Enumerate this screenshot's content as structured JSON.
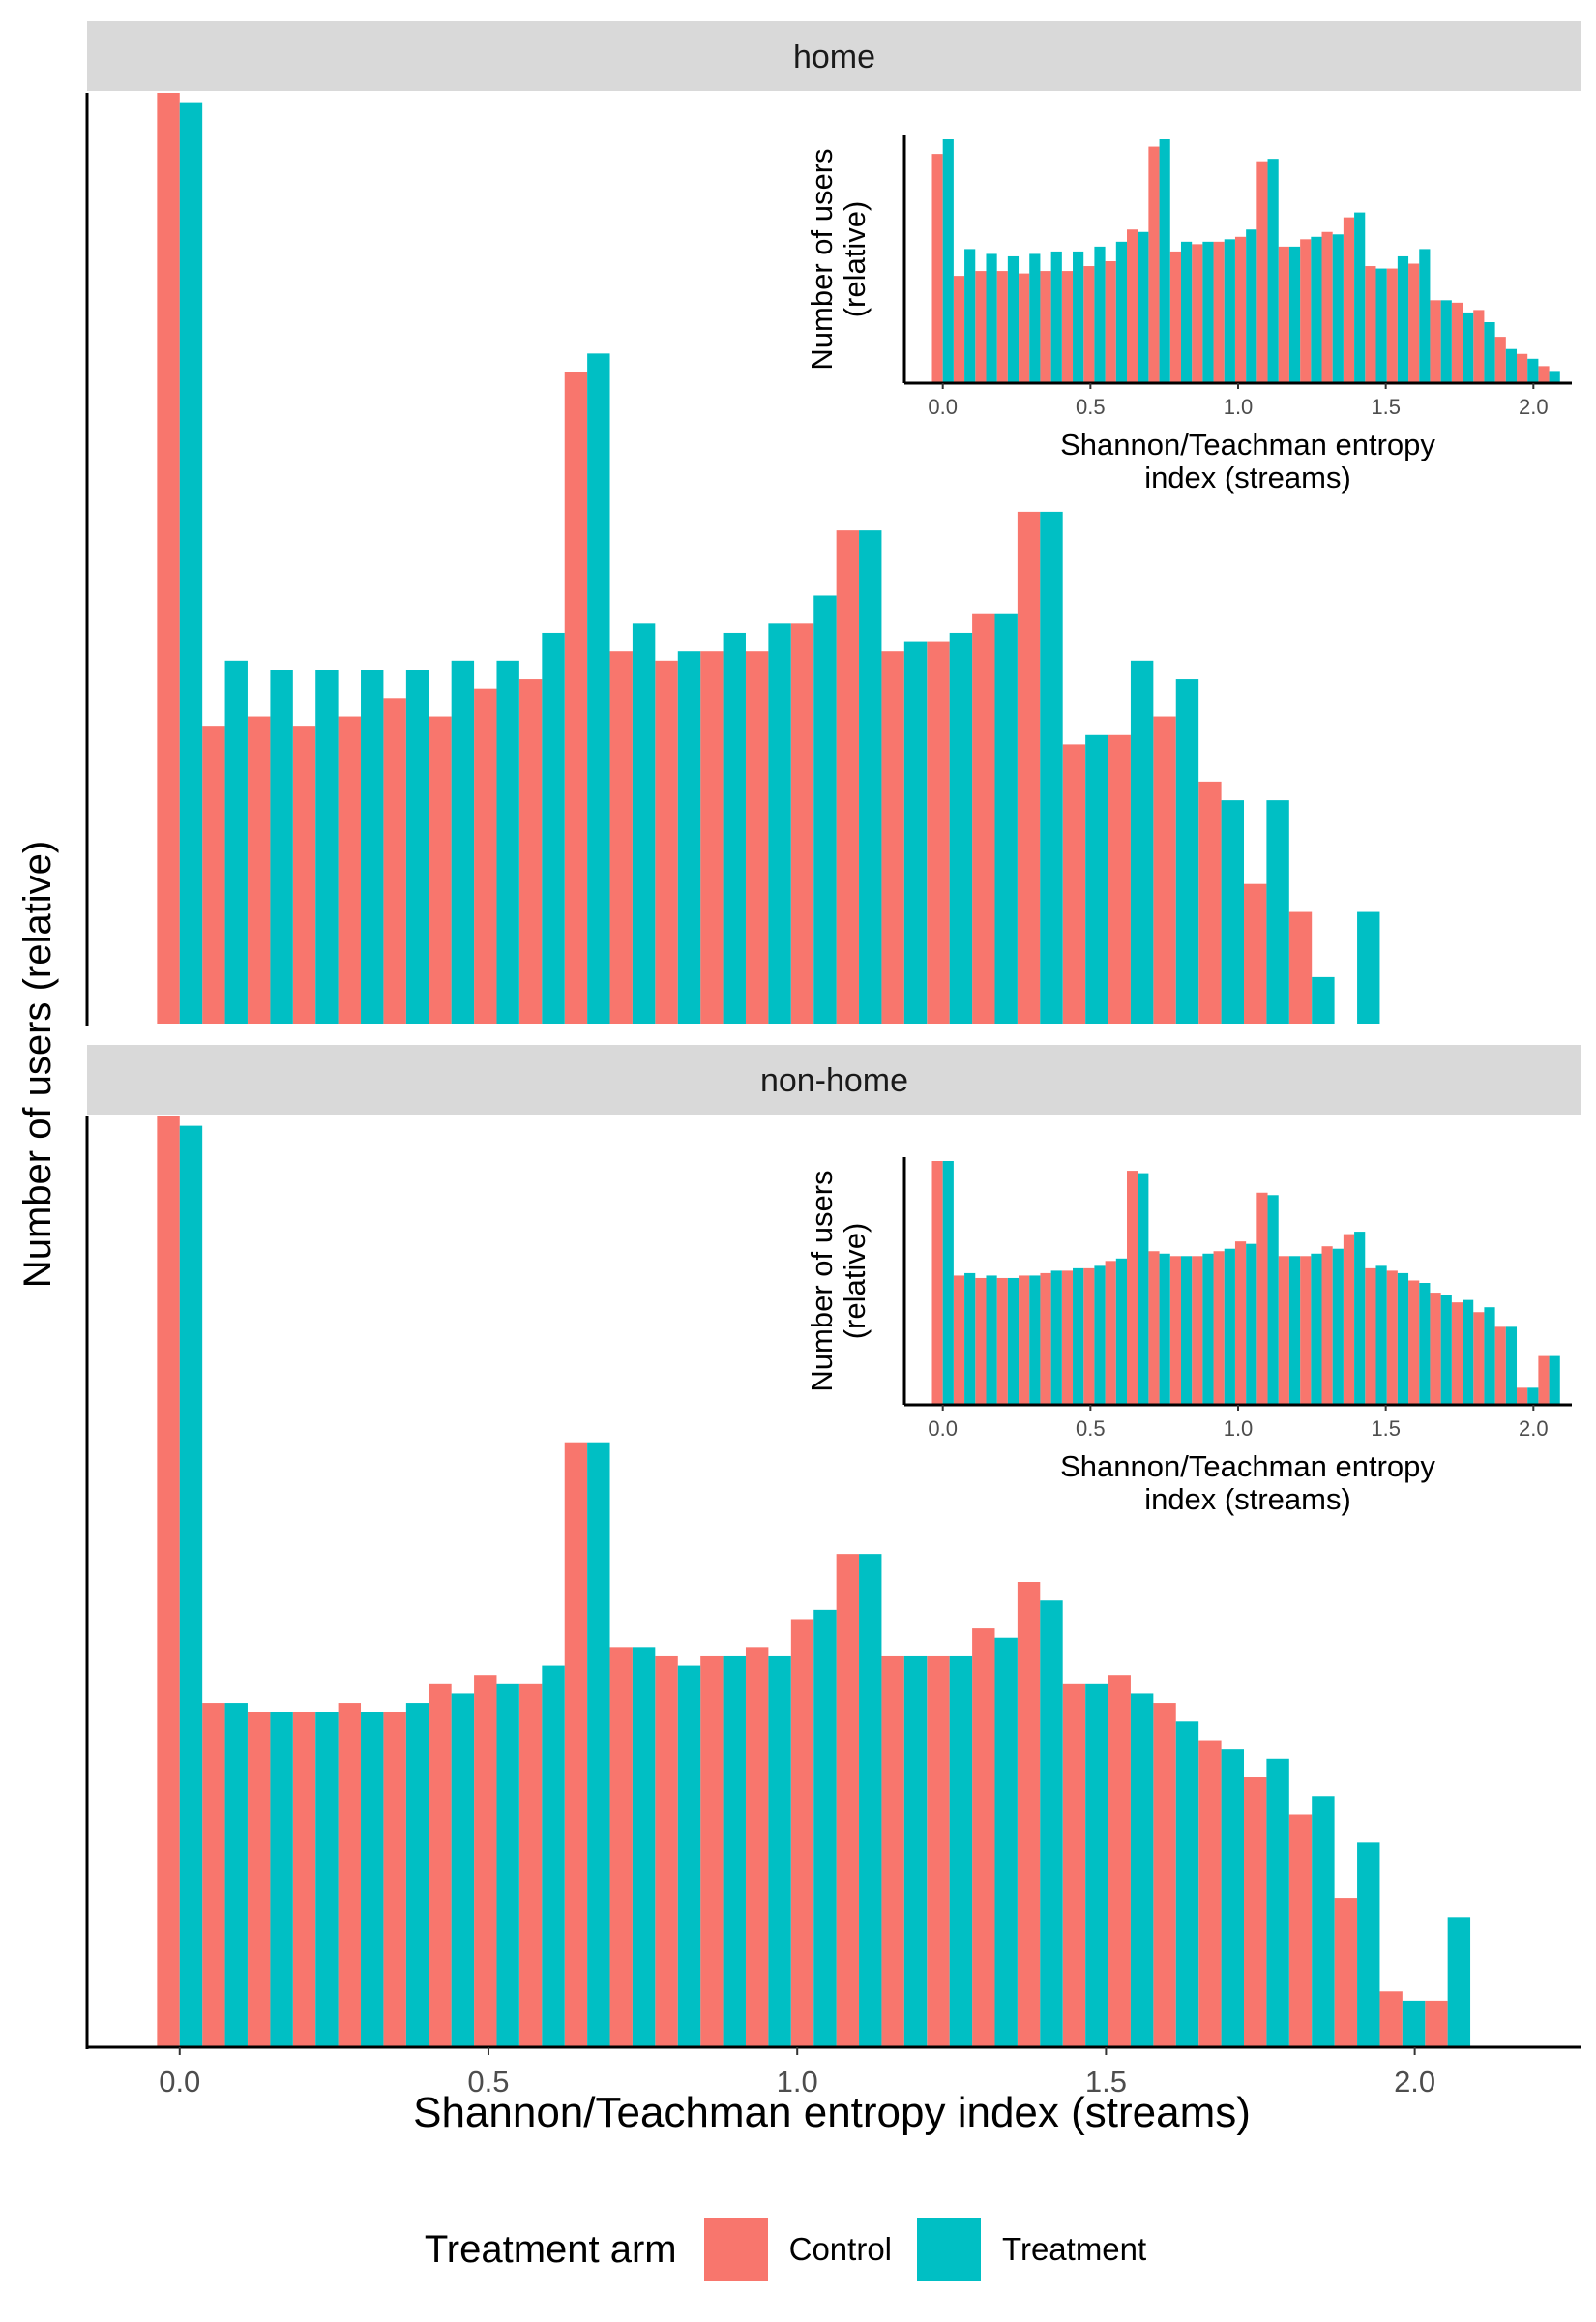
{
  "chart_data": {
    "type": "bar",
    "ylabel": "Number of users (relative)",
    "xlabel": "Shannon/Teachman entropy index (streams)",
    "xlim": [
      -0.15,
      2.27
    ],
    "x_ticks": [
      "0.0",
      "0.5",
      "1.0",
      "1.5",
      "2.0"
    ],
    "x_tick_values": [
      0,
      0.5,
      1.0,
      1.5,
      2.0
    ],
    "inset": {
      "ylabel_line1": "Number of users",
      "ylabel_line2": "(relative)",
      "xlabel_line1": "Shannon/Teachman entropy",
      "xlabel_line2": "index (streams)"
    },
    "legend": {
      "title": "Treatment arm",
      "position": "bottom",
      "entries": [
        {
          "name": "Control",
          "color": "#F8766D"
        },
        {
          "name": "Treatment",
          "color": "#00BFC4"
        }
      ]
    },
    "bin_width": 0.0733,
    "bin_centers": [
      0.0,
      0.0733,
      0.1467,
      0.22,
      0.2933,
      0.3667,
      0.44,
      0.5133,
      0.5867,
      0.66,
      0.7333,
      0.8067,
      0.88,
      0.9533,
      1.0267,
      1.1,
      1.1733,
      1.2467,
      1.32,
      1.3933,
      1.4667,
      1.54,
      1.6133,
      1.6867,
      1.76,
      1.8333,
      1.9067,
      1.98,
      2.0533
    ],
    "panels": [
      {
        "strip": "home",
        "series": [
          {
            "name": "Control",
            "values": [
              1.0,
              0.32,
              0.33,
              0.32,
              0.33,
              0.35,
              0.33,
              0.36,
              0.37,
              0.7,
              0.4,
              0.39,
              0.4,
              0.4,
              0.43,
              0.53,
              0.4,
              0.41,
              0.44,
              0.55,
              0.3,
              0.31,
              0.33,
              0.26,
              0.15,
              0.12,
              null,
              null,
              null
            ]
          },
          {
            "name": "Treatment",
            "values": [
              0.99,
              0.39,
              0.38,
              0.38,
              0.38,
              0.38,
              0.39,
              0.39,
              0.42,
              0.72,
              0.43,
              0.4,
              0.42,
              0.43,
              0.46,
              0.53,
              0.41,
              0.42,
              0.44,
              0.55,
              0.31,
              0.39,
              0.37,
              0.24,
              0.24,
              0.05,
              0.12,
              null,
              null
            ]
          }
        ],
        "inset_series": [
          {
            "name": "Control",
            "values": [
              0.94,
              0.44,
              0.46,
              0.46,
              0.45,
              0.46,
              0.46,
              0.48,
              0.5,
              0.63,
              0.97,
              0.54,
              0.57,
              0.58,
              0.6,
              0.91,
              0.56,
              0.59,
              0.62,
              0.68,
              0.48,
              0.47,
              0.49,
              0.34,
              0.33,
              0.3,
              0.19,
              0.12,
              0.07
            ]
          },
          {
            "name": "Treatment",
            "values": [
              1.0,
              0.55,
              0.53,
              0.52,
              0.53,
              0.54,
              0.54,
              0.56,
              0.58,
              0.62,
              1.0,
              0.58,
              0.58,
              0.59,
              0.63,
              0.92,
              0.56,
              0.6,
              0.61,
              0.7,
              0.47,
              0.52,
              0.55,
              0.34,
              0.29,
              0.25,
              0.14,
              0.1,
              0.05
            ]
          }
        ]
      },
      {
        "strip": "non-home",
        "series": [
          {
            "name": "Control",
            "values": [
              1.0,
              0.37,
              0.36,
              0.36,
              0.37,
              0.36,
              0.39,
              0.4,
              0.39,
              0.65,
              0.43,
              0.42,
              0.42,
              0.43,
              0.46,
              0.53,
              0.42,
              0.42,
              0.45,
              0.5,
              0.39,
              0.4,
              0.37,
              0.33,
              0.29,
              0.25,
              0.16,
              0.06,
              0.05
            ]
          },
          {
            "name": "Treatment",
            "values": [
              0.99,
              0.37,
              0.36,
              0.36,
              0.36,
              0.37,
              0.38,
              0.39,
              0.41,
              0.65,
              0.43,
              0.41,
              0.42,
              0.42,
              0.47,
              0.53,
              0.42,
              0.42,
              0.44,
              0.48,
              0.39,
              0.38,
              0.35,
              0.32,
              0.31,
              0.27,
              0.22,
              0.05,
              0.14
            ]
          }
        ],
        "inset_series": [
          {
            "name": "Control",
            "values": [
              1.0,
              0.53,
              0.52,
              0.52,
              0.53,
              0.54,
              0.55,
              0.56,
              0.59,
              0.96,
              0.63,
              0.61,
              0.61,
              0.63,
              0.67,
              0.87,
              0.61,
              0.61,
              0.65,
              0.7,
              0.56,
              0.55,
              0.51,
              0.46,
              0.42,
              0.38,
              0.32,
              0.07,
              0.2
            ]
          },
          {
            "name": "Treatment",
            "values": [
              1.0,
              0.54,
              0.53,
              0.52,
              0.53,
              0.55,
              0.56,
              0.57,
              0.6,
              0.95,
              0.62,
              0.61,
              0.62,
              0.64,
              0.66,
              0.86,
              0.61,
              0.62,
              0.64,
              0.71,
              0.57,
              0.54,
              0.5,
              0.45,
              0.43,
              0.4,
              0.32,
              0.07,
              0.2
            ]
          }
        ]
      }
    ]
  }
}
